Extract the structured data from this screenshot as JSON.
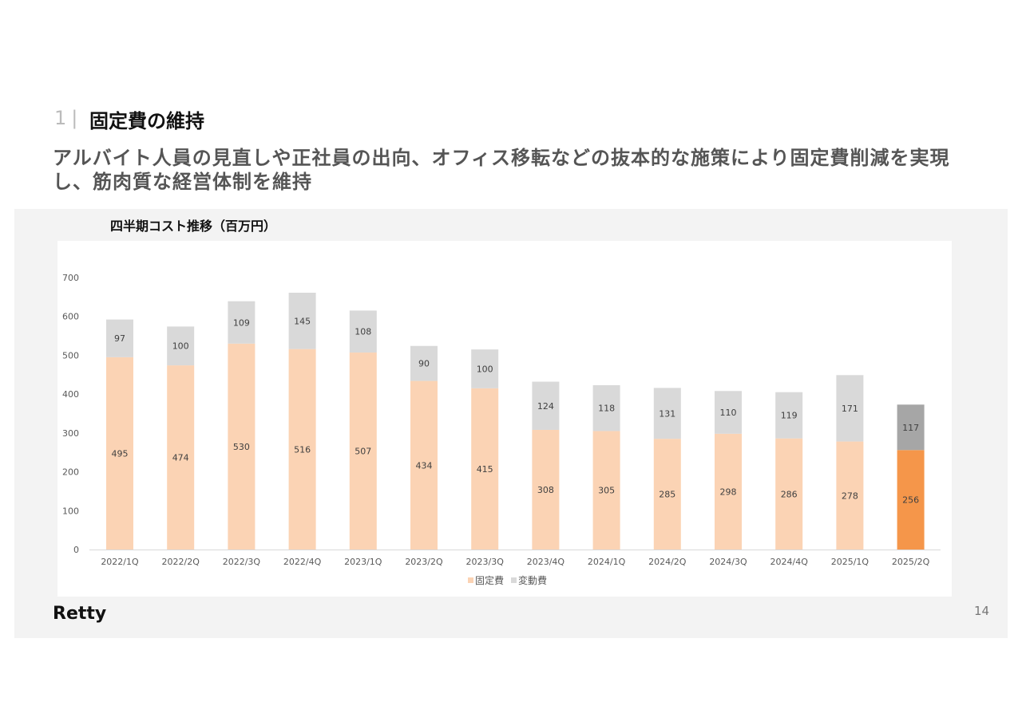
{
  "header": {
    "section_number": "1",
    "section_sep": "|",
    "section_title": "固定費の維持",
    "lead": "アルバイト人員の見直しや正社員の出向、オフィス移転などの抜本的な施策により固定費削減を実現し、筋肉質な経営体制を維持"
  },
  "footer": {
    "logo": "Retty",
    "page_number": "14"
  },
  "chart_data": {
    "type": "bar",
    "stacked": true,
    "title": "四半期コスト推移（百万円）",
    "categories": [
      "2022/1Q",
      "2022/2Q",
      "2022/3Q",
      "2022/4Q",
      "2023/1Q",
      "2023/2Q",
      "2023/3Q",
      "2023/4Q",
      "2024/1Q",
      "2024/2Q",
      "2024/3Q",
      "2024/4Q",
      "2025/1Q",
      "2025/2Q"
    ],
    "series": [
      {
        "name": "固定費",
        "values": [
          495,
          474,
          530,
          516,
          507,
          434,
          415,
          308,
          305,
          285,
          298,
          286,
          278,
          256
        ],
        "color": "#fbd3b4",
        "highlight_color": "#f5964a"
      },
      {
        "name": "変動費",
        "values": [
          97,
          100,
          109,
          145,
          108,
          90,
          100,
          124,
          118,
          131,
          110,
          119,
          171,
          117
        ],
        "color": "#d9d9d9",
        "highlight_color": "#a6a6a6"
      }
    ],
    "highlight_index": 13,
    "ylim": [
      0,
      700
    ],
    "yticks": [
      0,
      100,
      200,
      300,
      400,
      500,
      600,
      700
    ],
    "xlabel": "",
    "ylabel": "",
    "legend": "bottom-center",
    "grid": false
  }
}
